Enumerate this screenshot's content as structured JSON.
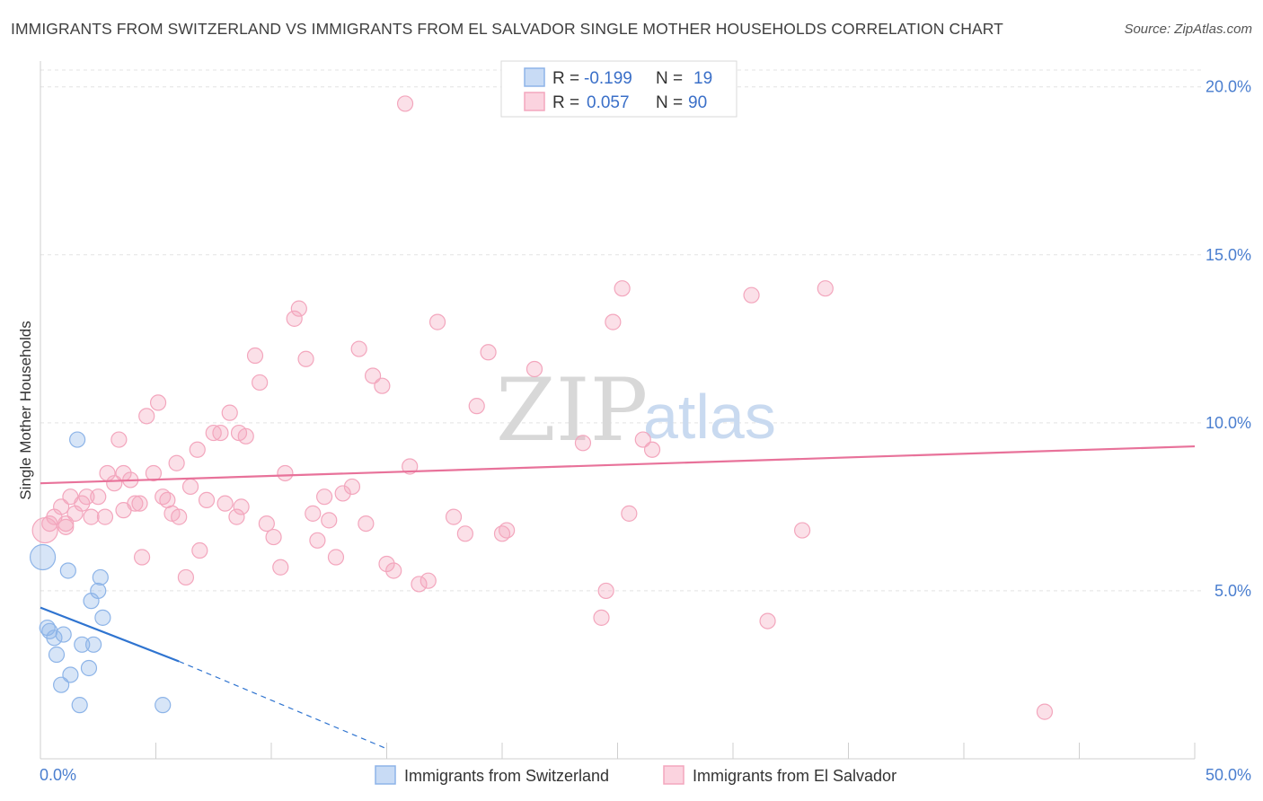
{
  "title": "IMMIGRANTS FROM SWITZERLAND VS IMMIGRANTS FROM EL SALVADOR SINGLE MOTHER HOUSEHOLDS CORRELATION CHART",
  "source": "Source: ZipAtlas.com",
  "watermark": {
    "zip": "ZIP",
    "atlas": "atlas"
  },
  "colors": {
    "blue": "#8db4e8",
    "blue_line": "#2f74d0",
    "pink": "#f3a6bd",
    "pink_line": "#e8729a",
    "axis_text": "#4a7ecf"
  },
  "legend": {
    "row1": {
      "r_label": "R =",
      "r_value": "-0.199",
      "n_label": "N =",
      "n_value": "19"
    },
    "row2": {
      "r_label": "R =",
      "r_value": "0.057",
      "n_label": "N =",
      "n_value": "90"
    }
  },
  "chart_data": {
    "type": "scatter",
    "xlabel": "",
    "ylabel": "Single Mother Households",
    "xlim": [
      0,
      50
    ],
    "ylim": [
      0,
      20.5
    ],
    "x_tick_labels": [
      "0.0%",
      "50.0%"
    ],
    "y_ticks": [
      5,
      10,
      15,
      20
    ],
    "y_tick_labels": [
      "5.0%",
      "10.0%",
      "15.0%",
      "20.0%"
    ],
    "grid": true,
    "legend_position": "top-center",
    "series": [
      {
        "name": "Immigrants from Switzerland",
        "color": "#8db4e8",
        "points": [
          [
            0.1,
            6.0
          ],
          [
            1.6,
            9.5
          ],
          [
            0.3,
            3.9
          ],
          [
            0.4,
            3.8
          ],
          [
            0.6,
            3.6
          ],
          [
            1.0,
            3.7
          ],
          [
            0.7,
            3.1
          ],
          [
            0.9,
            2.2
          ],
          [
            1.3,
            2.5
          ],
          [
            1.7,
            1.6
          ],
          [
            1.8,
            3.4
          ],
          [
            2.1,
            2.7
          ],
          [
            2.3,
            3.4
          ],
          [
            2.2,
            4.7
          ],
          [
            2.5,
            5.0
          ],
          [
            2.7,
            4.2
          ],
          [
            2.6,
            5.4
          ],
          [
            1.2,
            5.6
          ],
          [
            5.3,
            1.6
          ]
        ],
        "trend": {
          "x": [
            0,
            6.0
          ],
          "y": [
            4.5,
            2.9
          ],
          "dashed_to": [
            15.0,
            0.3
          ]
        }
      },
      {
        "name": "Immigrants from El Salvador",
        "color": "#f3a6bd",
        "points": [
          [
            0.2,
            6.8
          ],
          [
            0.4,
            7.0
          ],
          [
            0.6,
            7.2
          ],
          [
            0.9,
            7.5
          ],
          [
            1.1,
            7.0
          ],
          [
            1.3,
            7.8
          ],
          [
            1.5,
            7.3
          ],
          [
            1.8,
            7.6
          ],
          [
            2.0,
            7.8
          ],
          [
            2.2,
            7.2
          ],
          [
            2.5,
            7.8
          ],
          [
            2.8,
            7.2
          ],
          [
            2.9,
            8.5
          ],
          [
            3.2,
            8.2
          ],
          [
            3.4,
            9.5
          ],
          [
            3.6,
            8.5
          ],
          [
            3.9,
            8.3
          ],
          [
            4.1,
            7.6
          ],
          [
            4.3,
            7.6
          ],
          [
            4.4,
            6.0
          ],
          [
            4.6,
            10.2
          ],
          [
            4.9,
            8.5
          ],
          [
            5.1,
            10.6
          ],
          [
            5.3,
            7.8
          ],
          [
            5.5,
            7.7
          ],
          [
            5.7,
            7.3
          ],
          [
            5.9,
            8.8
          ],
          [
            6.0,
            7.2
          ],
          [
            6.3,
            5.4
          ],
          [
            6.5,
            8.1
          ],
          [
            6.8,
            9.2
          ],
          [
            6.9,
            6.2
          ],
          [
            7.2,
            7.7
          ],
          [
            7.5,
            9.7
          ],
          [
            7.8,
            9.7
          ],
          [
            8.0,
            7.6
          ],
          [
            8.2,
            10.3
          ],
          [
            8.5,
            7.2
          ],
          [
            8.7,
            7.5
          ],
          [
            8.9,
            9.6
          ],
          [
            9.3,
            12.0
          ],
          [
            9.5,
            11.2
          ],
          [
            9.8,
            7.0
          ],
          [
            10.1,
            6.6
          ],
          [
            10.4,
            5.7
          ],
          [
            10.6,
            8.5
          ],
          [
            11.0,
            13.1
          ],
          [
            11.2,
            13.4
          ],
          [
            11.5,
            11.9
          ],
          [
            11.8,
            7.3
          ],
          [
            12.0,
            6.5
          ],
          [
            12.3,
            7.8
          ],
          [
            12.5,
            7.1
          ],
          [
            12.8,
            6.0
          ],
          [
            13.1,
            7.9
          ],
          [
            13.5,
            8.1
          ],
          [
            13.8,
            12.2
          ],
          [
            14.1,
            7.0
          ],
          [
            14.4,
            11.4
          ],
          [
            14.8,
            11.1
          ],
          [
            15.0,
            5.8
          ],
          [
            15.3,
            5.6
          ],
          [
            16.0,
            8.7
          ],
          [
            16.4,
            5.2
          ],
          [
            16.8,
            5.3
          ],
          [
            17.2,
            13.0
          ],
          [
            17.9,
            7.2
          ],
          [
            18.4,
            6.7
          ],
          [
            18.9,
            10.5
          ],
          [
            19.4,
            12.1
          ],
          [
            20.0,
            6.7
          ],
          [
            20.2,
            6.8
          ],
          [
            21.4,
            11.6
          ],
          [
            23.5,
            9.4
          ],
          [
            24.3,
            4.2
          ],
          [
            24.5,
            5.0
          ],
          [
            24.8,
            13.0
          ],
          [
            25.2,
            14.0
          ],
          [
            25.5,
            7.3
          ],
          [
            26.1,
            9.5
          ],
          [
            26.5,
            9.2
          ],
          [
            30.8,
            13.8
          ],
          [
            31.5,
            4.1
          ],
          [
            33.0,
            6.8
          ],
          [
            34.0,
            14.0
          ],
          [
            43.5,
            1.4
          ],
          [
            15.8,
            19.5
          ],
          [
            8.6,
            9.7
          ],
          [
            3.6,
            7.4
          ],
          [
            1.1,
            6.9
          ]
        ],
        "trend": {
          "x": [
            0,
            50
          ],
          "y": [
            8.2,
            9.3
          ]
        }
      }
    ]
  }
}
